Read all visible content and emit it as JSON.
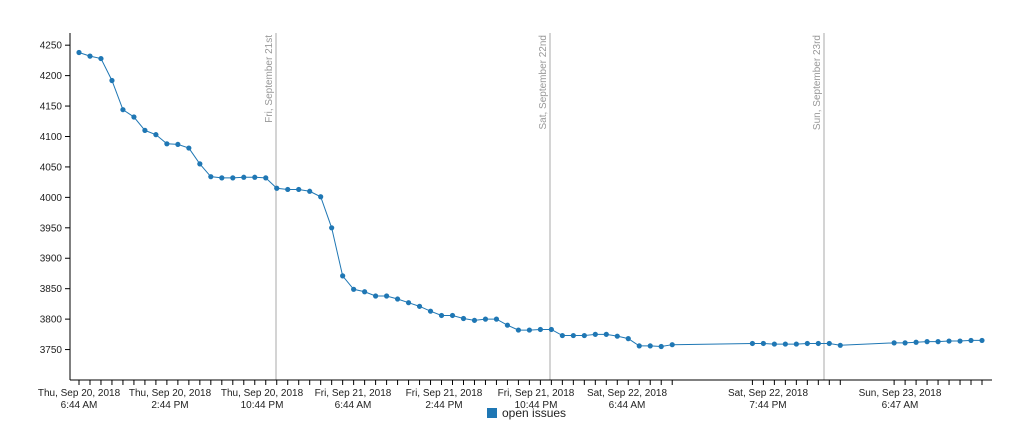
{
  "chart_data": {
    "type": "line",
    "ylim": [
      3700,
      4270
    ],
    "y_ticks": [
      3750,
      3800,
      3850,
      3900,
      3950,
      4000,
      4050,
      4100,
      4150,
      4200,
      4250
    ],
    "x_ticks": [
      {
        "line1": "Thu, Sep 20, 2018",
        "line2": "6:44 AM"
      },
      {
        "line1": "Thu, Sep 20, 2018",
        "line2": "2:44 PM"
      },
      {
        "line1": "Thu, Sep 20, 2018",
        "line2": "10:44 PM"
      },
      {
        "line1": "Fri, Sep 21, 2018",
        "line2": "6:44 AM"
      },
      {
        "line1": "Fri, Sep 21, 2018",
        "line2": "2:44 PM"
      },
      {
        "line1": "Fri, Sep 21, 2018",
        "line2": "10:44 PM"
      },
      {
        "line1": "Sat, Sep 22, 2018",
        "line2": "6:44 AM"
      },
      {
        "line1": "Sat, Sep 22, 2018",
        "line2": "7:44 PM"
      },
      {
        "line1": "Sun, Sep 23, 2018",
        "line2": "6:47 AM"
      }
    ],
    "day_markers": [
      "Fri, September 21st",
      "Sat, September 22nd",
      "Sun, September 23rd"
    ],
    "legend": "open issues",
    "series": [
      {
        "name": "open issues",
        "color": "#1f77b4",
        "values": [
          4238,
          4232,
          4228,
          4192,
          4144,
          4132,
          4110,
          4103,
          4088,
          4087,
          4081,
          4055,
          4034,
          4032,
          4032,
          4033,
          4033,
          4032,
          4015,
          4013,
          4013,
          4010,
          4001,
          3950,
          3871,
          3849,
          3845,
          3838,
          3838,
          3833,
          3827,
          3821,
          3813,
          3806,
          3806,
          3801,
          3798,
          3800,
          3800,
          3790,
          3782,
          3782,
          3783,
          3783,
          3773,
          3773,
          3773,
          3775,
          3775,
          3772,
          3768,
          3756,
          3756,
          3755,
          3758,
          3760,
          3760,
          3759,
          3759,
          3759,
          3760,
          3760,
          3760,
          3757,
          3761,
          3761,
          3762,
          3763,
          3763,
          3764,
          3764,
          3765,
          3765
        ]
      }
    ]
  }
}
